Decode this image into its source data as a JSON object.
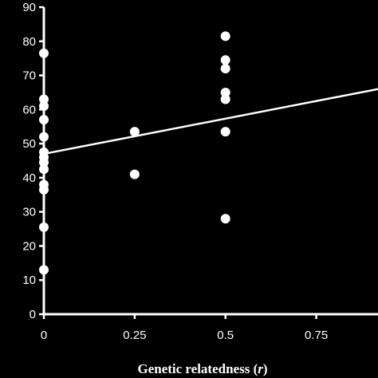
{
  "chart_data": {
    "type": "scatter",
    "title": "",
    "xlabel_parts": [
      "Genetic relatedness (",
      "r",
      ")"
    ],
    "ylabel": "",
    "xlim": [
      0,
      0.92
    ],
    "ylim": [
      0,
      90
    ],
    "x_ticks": [
      0,
      0.25,
      0.5,
      0.75
    ],
    "x_tick_labels": [
      "0",
      "0.25",
      "0.5",
      "0.75"
    ],
    "y_ticks": [
      0,
      10,
      20,
      30,
      40,
      50,
      60,
      70,
      80,
      90
    ],
    "y_tick_labels": [
      "0",
      "10",
      "20",
      "30",
      "40",
      "50",
      "60",
      "70",
      "80",
      "90"
    ],
    "grid": false,
    "colors": {
      "background": "#000000",
      "foreground": "#ffffff"
    },
    "points": [
      {
        "x": 0,
        "y": 76.5
      },
      {
        "x": 0,
        "y": 63
      },
      {
        "x": 0,
        "y": 61
      },
      {
        "x": 0,
        "y": 57
      },
      {
        "x": 0,
        "y": 52
      },
      {
        "x": 0,
        "y": 47.5
      },
      {
        "x": 0,
        "y": 46
      },
      {
        "x": 0,
        "y": 44.5
      },
      {
        "x": 0,
        "y": 42.5
      },
      {
        "x": 0,
        "y": 38
      },
      {
        "x": 0,
        "y": 36.5
      },
      {
        "x": 0,
        "y": 25.5
      },
      {
        "x": 0,
        "y": 13
      },
      {
        "x": 0.25,
        "y": 53.5
      },
      {
        "x": 0.25,
        "y": 41
      },
      {
        "x": 0.5,
        "y": 81.5
      },
      {
        "x": 0.5,
        "y": 74.5
      },
      {
        "x": 0.5,
        "y": 72
      },
      {
        "x": 0.5,
        "y": 65
      },
      {
        "x": 0.5,
        "y": 63
      },
      {
        "x": 0.5,
        "y": 53.5
      },
      {
        "x": 0.5,
        "y": 28
      }
    ],
    "trendline": {
      "x": [
        0,
        0.92
      ],
      "y": [
        47,
        66
      ]
    }
  }
}
